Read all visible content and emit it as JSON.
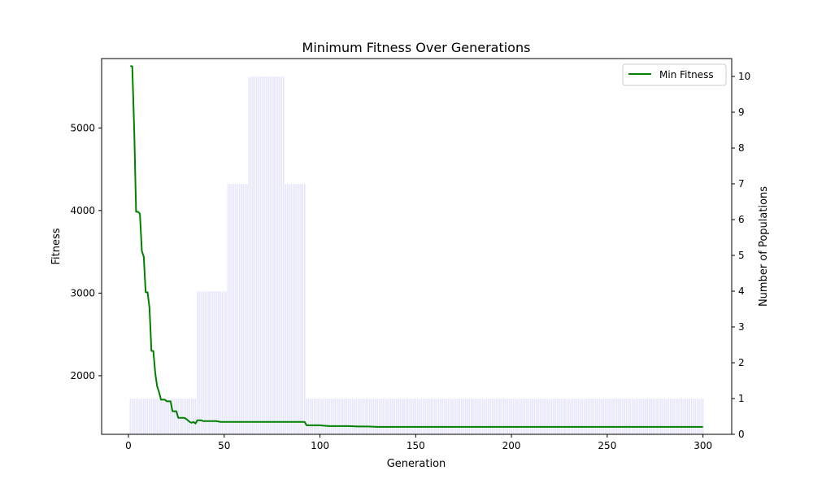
{
  "chart_data": {
    "type": "line+bar",
    "title": "Minimum Fitness Over Generations",
    "xlabel": "Generation",
    "ylabel": "Fitness",
    "y2label": "Number of Populations",
    "xlim": [
      -14,
      315
    ],
    "ylim": [
      1290,
      5840
    ],
    "y2lim": [
      0,
      10.5
    ],
    "x_ticks": [
      0,
      50,
      100,
      150,
      200,
      250,
      300
    ],
    "y_ticks": [
      2000,
      3000,
      4000,
      5000
    ],
    "y2_ticks": [
      0,
      1,
      2,
      3,
      4,
      5,
      6,
      7,
      8,
      9,
      10
    ],
    "grid": false,
    "legend": {
      "position": "top-right",
      "entries": [
        "Min Fitness"
      ]
    },
    "colors": {
      "line": "#008000",
      "bars": "#e6e6fa",
      "bar_edge": "#ffffff"
    },
    "bars": {
      "name": "Number of Populations",
      "segments": [
        {
          "from": 1,
          "to": 35,
          "value": 1
        },
        {
          "from": 36,
          "to": 51,
          "value": 4
        },
        {
          "from": 52,
          "to": 62,
          "value": 7
        },
        {
          "from": 63,
          "to": 81,
          "value": 10
        },
        {
          "from": 82,
          "to": 92,
          "value": 7
        },
        {
          "from": 93,
          "to": 300,
          "value": 1
        }
      ]
    },
    "series": [
      {
        "name": "Min Fitness",
        "x": [
          1,
          2,
          3,
          4,
          5,
          6,
          7,
          8,
          9,
          10,
          11,
          12,
          13,
          14,
          15,
          16,
          17,
          18,
          19,
          20,
          21,
          22,
          23,
          24,
          25,
          26,
          27,
          28,
          29,
          30,
          31,
          32,
          33,
          34,
          35,
          36,
          37,
          38,
          39,
          40,
          42,
          44,
          46,
          48,
          50,
          60,
          70,
          80,
          90,
          92,
          93,
          96,
          100,
          102,
          105,
          110,
          115,
          120,
          125,
          130,
          150,
          200,
          250,
          300
        ],
        "values": [
          5750,
          5745,
          4990,
          3985,
          3985,
          3960,
          3510,
          3440,
          3010,
          3010,
          2820,
          2300,
          2300,
          2030,
          1870,
          1800,
          1710,
          1710,
          1710,
          1690,
          1690,
          1690,
          1570,
          1570,
          1570,
          1490,
          1490,
          1490,
          1490,
          1480,
          1460,
          1440,
          1430,
          1440,
          1420,
          1460,
          1460,
          1460,
          1450,
          1450,
          1450,
          1450,
          1450,
          1440,
          1440,
          1440,
          1440,
          1440,
          1440,
          1440,
          1400,
          1400,
          1400,
          1395,
          1390,
          1390,
          1390,
          1385,
          1385,
          1380,
          1380,
          1380,
          1380,
          1380
        ]
      }
    ]
  }
}
